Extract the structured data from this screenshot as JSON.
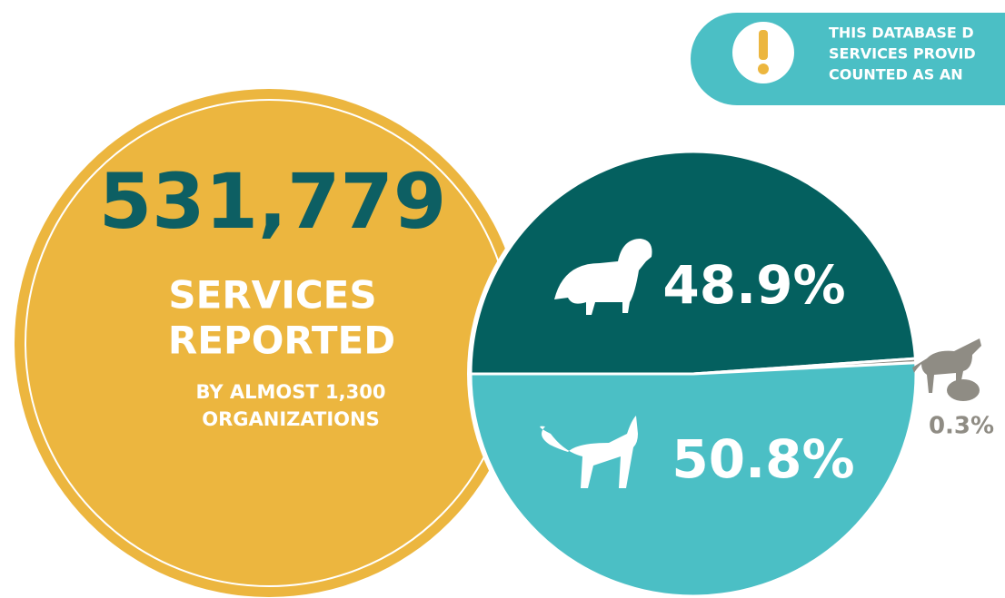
{
  "stat": {
    "number": "531,779",
    "line1": "SERVICES",
    "line2": "REPORTED",
    "line3": "BY ALMOST 1,300",
    "line4": "ORGANIZATIONS"
  },
  "notice": {
    "lines": [
      "THIS DATABASE D",
      "SERVICES PROVID",
      "COUNTED AS AN"
    ]
  },
  "chart_data": {
    "type": "pie",
    "categories": [
      null,
      null,
      null
    ],
    "values": [
      48.9,
      0.3,
      50.8
    ],
    "value_labels": [
      "48.9%",
      "0.3%",
      "50.8%"
    ],
    "colors": [
      "#04605f",
      "#8f8c84",
      "#4bbfc5"
    ]
  }
}
